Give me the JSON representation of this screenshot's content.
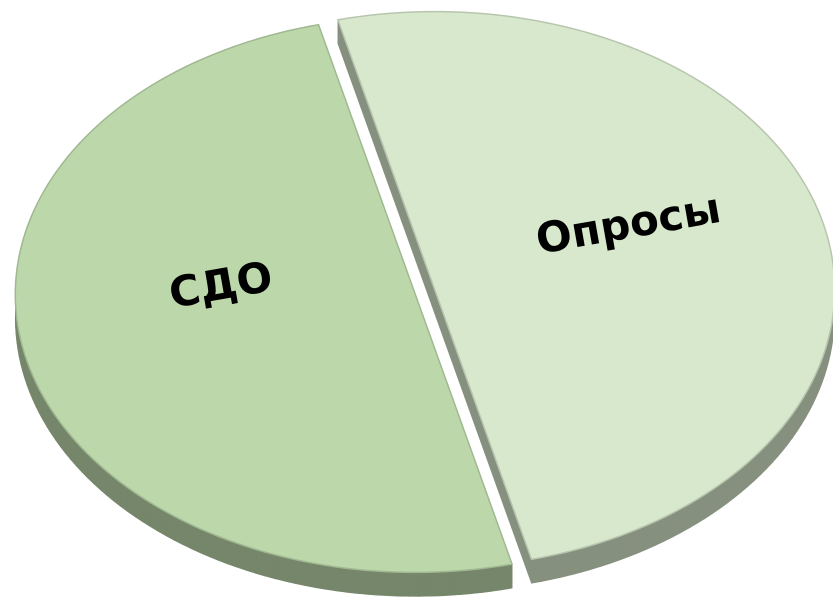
{
  "chart_data": {
    "type": "pie",
    "categories": [
      "СДО",
      "Опросы"
    ],
    "values": [
      50,
      50
    ],
    "colors": [
      "#bcd8ab",
      "#d8e8cd"
    ]
  }
}
